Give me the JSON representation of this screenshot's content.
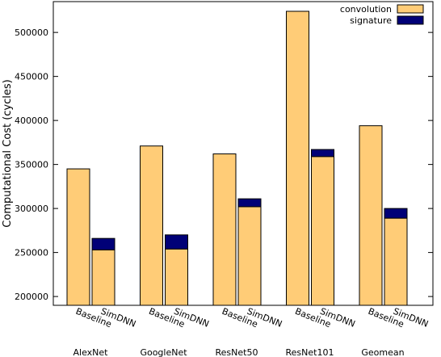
{
  "chart_data": {
    "type": "bar",
    "stacked": true,
    "ylabel": "Computational Cost (cycles)",
    "ylim": [
      190000,
      535000
    ],
    "yticks": [
      200000,
      250000,
      300000,
      350000,
      400000,
      450000,
      500000
    ],
    "groups": [
      "AlexNet",
      "GoogleNet",
      "ResNet50",
      "ResNet101",
      "Geomean"
    ],
    "bar_labels": [
      "Baseline",
      "SimDNN"
    ],
    "series": [
      {
        "name": "convolution",
        "color": "#ffcc77",
        "values": [
          [
            345000,
            253000
          ],
          [
            371000,
            254000
          ],
          [
            362000,
            302000
          ],
          [
            524000,
            359000
          ],
          [
            394000,
            289000
          ]
        ]
      },
      {
        "name": "signature",
        "color": "#000077",
        "values": [
          [
            0,
            13000
          ],
          [
            0,
            16000
          ],
          [
            0,
            9000
          ],
          [
            0,
            8000
          ],
          [
            0,
            11000
          ]
        ]
      }
    ],
    "legend": "top-right",
    "grid": false
  }
}
